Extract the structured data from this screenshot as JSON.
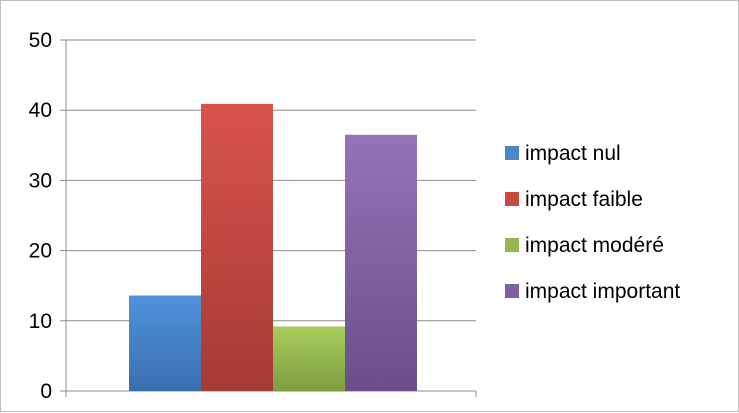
{
  "chart_data": {
    "type": "bar",
    "title": "",
    "xlabel": "",
    "ylabel": "",
    "ylim": [
      0,
      50
    ],
    "yticks": [
      "0",
      "10",
      "20",
      "30",
      "40",
      "50"
    ],
    "grid": true,
    "legend_position": "right",
    "series": [
      {
        "name": "impact nul",
        "value": 13.6,
        "color": "#4a86c8"
      },
      {
        "name": "impact faible",
        "value": 40.9,
        "color": "#c84a43"
      },
      {
        "name": "impact modéré",
        "value": 9.2,
        "color": "#96b84f"
      },
      {
        "name": "impact important",
        "value": 36.5,
        "color": "#7e60a1"
      }
    ]
  }
}
